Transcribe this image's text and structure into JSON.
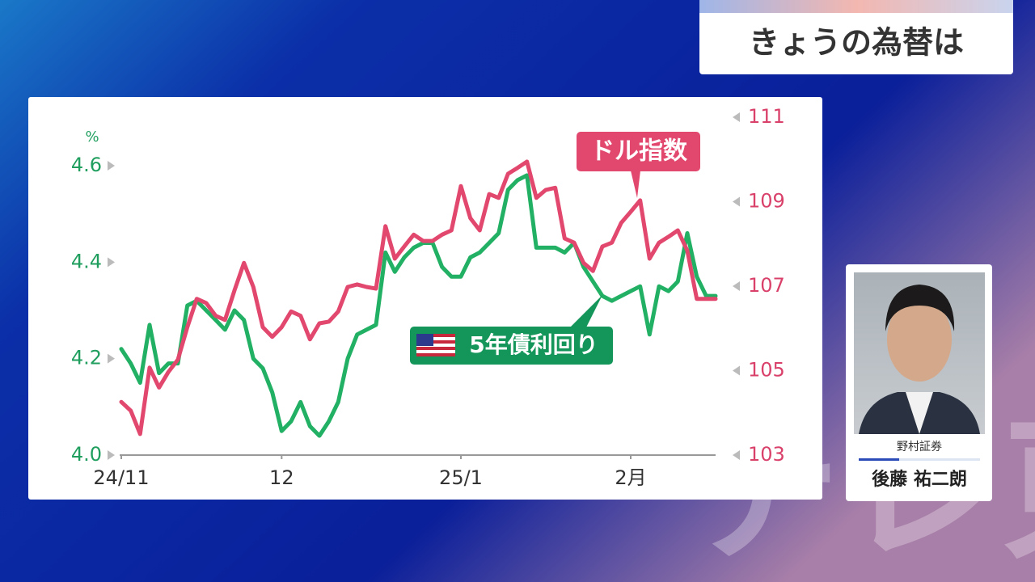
{
  "header": {
    "title": "きょうの為替は"
  },
  "chart_data": {
    "type": "line",
    "unit_label": "%",
    "categories": [
      "24/11",
      null,
      null,
      null,
      null,
      null,
      null,
      null,
      null,
      null,
      null,
      null,
      null,
      null,
      null,
      null,
      null,
      "12",
      null,
      null,
      null,
      null,
      null,
      null,
      null,
      null,
      null,
      null,
      null,
      null,
      null,
      null,
      null,
      null,
      null,
      null,
      "25/1",
      null,
      null,
      null,
      null,
      null,
      null,
      null,
      null,
      null,
      null,
      null,
      null,
      null,
      null,
      null,
      null,
      null,
      "2月",
      null,
      null,
      null,
      null,
      null,
      null,
      null,
      null,
      null
    ],
    "series": [
      {
        "name": "5年債利回り",
        "color": "#22b064",
        "values": [
          4.22,
          4.19,
          4.15,
          4.27,
          4.17,
          4.19,
          4.19,
          4.31,
          4.32,
          4.3,
          4.28,
          4.26,
          4.3,
          4.28,
          4.2,
          4.18,
          4.13,
          4.05,
          4.07,
          4.11,
          4.06,
          4.04,
          4.07,
          4.11,
          4.2,
          4.25,
          4.26,
          4.27,
          4.42,
          4.38,
          4.41,
          4.43,
          4.44,
          4.44,
          4.39,
          4.37,
          4.37,
          4.41,
          4.42,
          4.44,
          4.46,
          4.55,
          4.57,
          4.58,
          4.43,
          4.43,
          4.43,
          4.42,
          4.44,
          4.39,
          4.36,
          4.33,
          4.32,
          4.33,
          4.34,
          4.35,
          4.25,
          4.35,
          4.34,
          4.36,
          4.46,
          4.37,
          4.33,
          4.33
        ]
      },
      {
        "name": "ドル指数",
        "color": "#e2476e",
        "axis": "y2",
        "values": [
          104.26,
          104.05,
          103.5,
          105.07,
          104.6,
          104.97,
          105.26,
          106.03,
          106.7,
          106.6,
          106.3,
          106.2,
          106.9,
          107.55,
          106.98,
          106.03,
          105.8,
          106.03,
          106.4,
          106.3,
          105.74,
          106.12,
          106.16,
          106.4,
          106.98,
          107.04,
          106.98,
          106.94,
          108.42,
          107.65,
          107.94,
          108.22,
          108.07,
          108.07,
          108.22,
          108.32,
          109.37,
          108.61,
          108.32,
          109.18,
          109.09,
          109.66,
          109.8,
          109.95,
          109.09,
          109.28,
          109.33,
          108.13,
          108.03,
          107.55,
          107.36,
          107.94,
          108.03,
          108.5,
          108.76,
          109.03,
          107.65,
          108.03,
          108.17,
          108.32,
          107.84,
          106.7,
          106.7,
          106.7
        ]
      }
    ],
    "ylim": [
      4,
      4.6
    ],
    "yticks": [
      {
        "value": 4,
        "label": "4.0"
      },
      {
        "value": 4.2,
        "label": "4.2"
      },
      {
        "value": 4.4,
        "label": "4.4"
      },
      {
        "value": 4.6,
        "label": "4.6"
      }
    ],
    "y2lim": [
      103,
      111
    ],
    "y2ticks": [
      103,
      105,
      107,
      109,
      111
    ]
  },
  "guest": {
    "company": "野村証券",
    "name": "後藤 祐二朗"
  },
  "watermark": "テレ東"
}
